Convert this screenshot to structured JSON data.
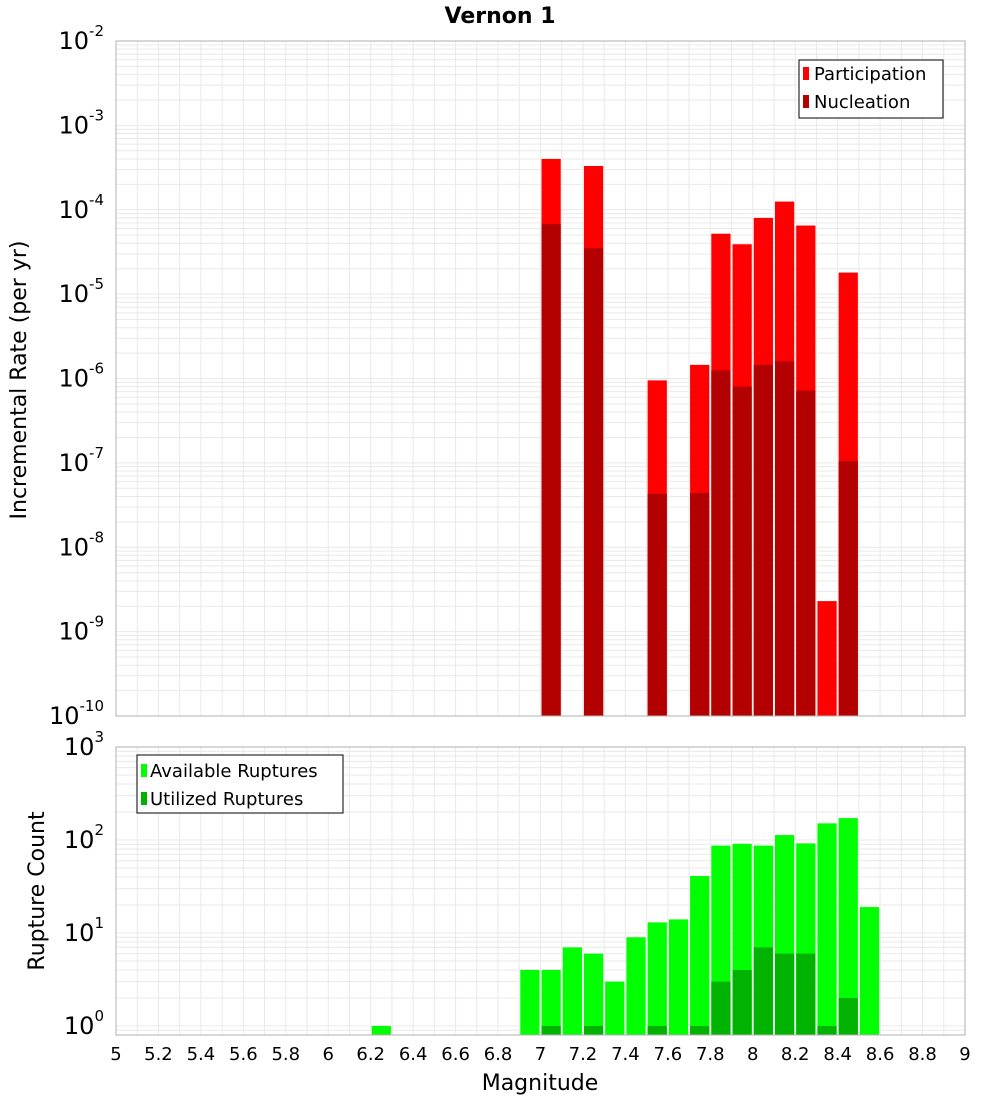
{
  "chart_data": [
    {
      "type": "bar",
      "title": "Vernon 1",
      "xlabel": "",
      "ylabel": "Incremental Rate (per yr)",
      "yscale": "log",
      "ylim": [
        1e-10,
        0.01
      ],
      "xlim": [
        5,
        9
      ],
      "ytick_exponents": [
        -10,
        -9,
        -8,
        -7,
        -6,
        -5,
        -4,
        -3,
        -2
      ],
      "grid": true,
      "legend_position": "top-right",
      "colors": {
        "Participation": "#ff0000",
        "Nucleation": "#b30000"
      },
      "series": [
        {
          "name": "Participation",
          "x": [
            7.05,
            7.25,
            7.55,
            7.75,
            7.85,
            7.95,
            8.05,
            8.15,
            8.25,
            8.35,
            8.45
          ],
          "values": [
            0.0004,
            0.00033,
            9.5e-07,
            1.45e-06,
            5.2e-05,
            3.9e-05,
            8e-05,
            0.000125,
            6.5e-05,
            2.3e-09,
            1.8e-05
          ]
        },
        {
          "name": "Nucleation",
          "x": [
            7.05,
            7.25,
            7.55,
            7.75,
            7.85,
            7.95,
            8.05,
            8.15,
            8.25,
            8.35,
            8.45
          ],
          "values": [
            6.8e-05,
            3.5e-05,
            4.3e-08,
            4.4e-08,
            1.25e-06,
            8e-07,
            1.45e-06,
            1.6e-06,
            7.2e-07,
            null,
            1.05e-07
          ]
        }
      ]
    },
    {
      "type": "bar",
      "title": "",
      "xlabel": "Magnitude",
      "ylabel": "Rupture Count",
      "yscale": "log",
      "ylim": [
        0.8,
        1000
      ],
      "xlim": [
        5,
        9
      ],
      "ytick_exponents": [
        0,
        1,
        2,
        3
      ],
      "xticks": [
        "5",
        "5.2",
        "5.4",
        "5.6",
        "5.8",
        "6",
        "6.2",
        "6.4",
        "6.6",
        "6.8",
        "7",
        "7.2",
        "7.4",
        "7.6",
        "7.8",
        "8",
        "8.2",
        "8.4",
        "8.6",
        "8.8",
        "9"
      ],
      "grid": true,
      "legend_position": "top-left",
      "colors": {
        "Available Ruptures": "#00ff00",
        "Utilized Ruptures": "#00b300"
      },
      "series": [
        {
          "name": "Available Ruptures",
          "x": [
            6.25,
            6.95,
            7.05,
            7.15,
            7.25,
            7.35,
            7.45,
            7.55,
            7.65,
            7.75,
            7.85,
            7.95,
            8.05,
            8.15,
            8.25,
            8.35,
            8.45,
            8.55
          ],
          "values": [
            1,
            4,
            4,
            7,
            6,
            3,
            9,
            13,
            14,
            41,
            87,
            91,
            87,
            113,
            92,
            151,
            172,
            19
          ]
        },
        {
          "name": "Utilized Ruptures",
          "x": [
            7.05,
            7.25,
            7.55,
            7.75,
            7.85,
            7.95,
            8.05,
            8.15,
            8.25,
            8.35,
            8.45
          ],
          "values": [
            1,
            1,
            1,
            1,
            3,
            4,
            7,
            6,
            6,
            1,
            2
          ]
        }
      ]
    }
  ]
}
